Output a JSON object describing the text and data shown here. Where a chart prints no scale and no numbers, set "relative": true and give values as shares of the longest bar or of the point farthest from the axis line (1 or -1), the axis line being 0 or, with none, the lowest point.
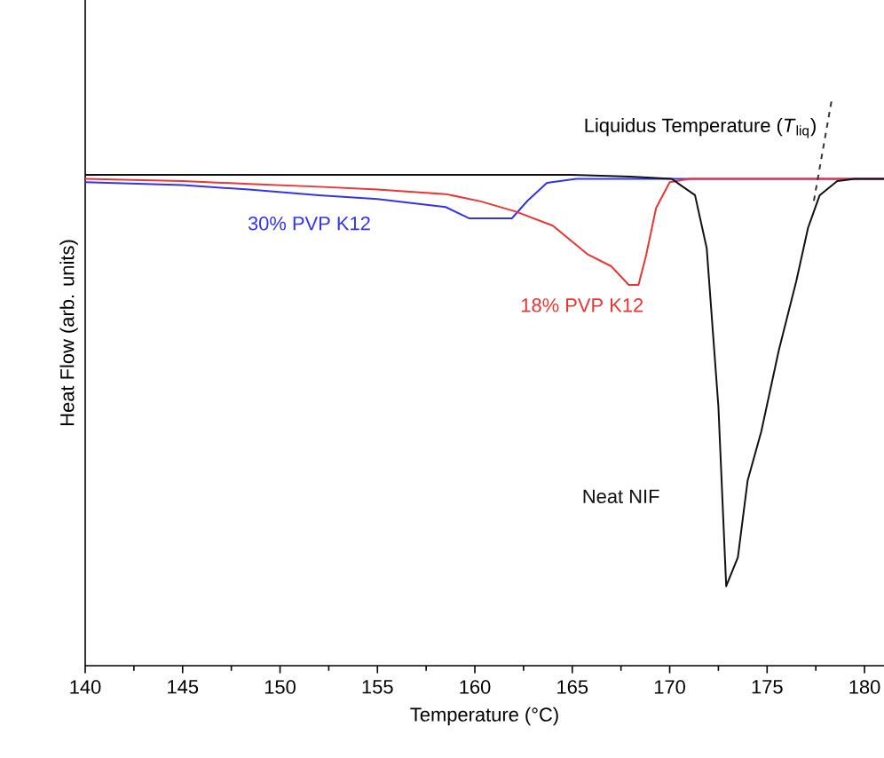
{
  "chart_data": {
    "type": "line",
    "relative": true,
    "xlabel": "Temperature (°C)",
    "ylabel": "Heat Flow (arb. units)",
    "xlim": [
      140,
      181
    ],
    "xticks": [
      140,
      145,
      150,
      155,
      160,
      165,
      170,
      175,
      180
    ],
    "marker": "none",
    "annotations": [
      "Liquidus Temperature (*T*$_{liq}$)"
    ],
    "series": [
      {
        "name": "30% PVP K12",
        "color": "#3333ee",
        "x": [
          140,
          145,
          148.4,
          152,
          155,
          158.5,
          159.7,
          161.9,
          162.7,
          163.7,
          165.2,
          170,
          181
        ],
        "values": [
          0.857,
          0.852,
          0.844,
          0.834,
          0.827,
          0.813,
          0.793,
          0.793,
          0.824,
          0.856,
          0.863,
          0.863,
          0.863
        ]
      },
      {
        "name": "18% PVP K12",
        "color": "#ee3333",
        "x": [
          140,
          145,
          148.4,
          152,
          155,
          158.5,
          160.3,
          162.1,
          164.0,
          165.8,
          167.0,
          167.9,
          168.4,
          168.8,
          169.3,
          170.0,
          171,
          181
        ],
        "values": [
          0.863,
          0.859,
          0.854,
          0.849,
          0.844,
          0.836,
          0.823,
          0.805,
          0.78,
          0.729,
          0.708,
          0.675,
          0.675,
          0.729,
          0.811,
          0.857,
          0.863,
          0.863
        ]
      },
      {
        "name": "Neat NIF",
        "color": "#111111",
        "x": [
          140,
          165,
          168,
          170.1,
          171.3,
          171.9,
          172.5,
          172.9,
          173.5,
          174.0,
          174.7,
          175.6,
          176.5,
          177.1,
          177.7,
          178.6,
          179.5,
          181
        ],
        "values": [
          0.87,
          0.87,
          0.867,
          0.863,
          0.834,
          0.74,
          0.459,
          0.141,
          0.192,
          0.328,
          0.415,
          0.559,
          0.682,
          0.776,
          0.834,
          0.859,
          0.863,
          0.863
        ]
      },
      {
        "type": "line",
        "line_style": "dashed",
        "color": "#333333",
        "x": [
          177.4,
          178.3
        ],
        "values": [
          0.824,
          1.0
        ]
      }
    ]
  }
}
